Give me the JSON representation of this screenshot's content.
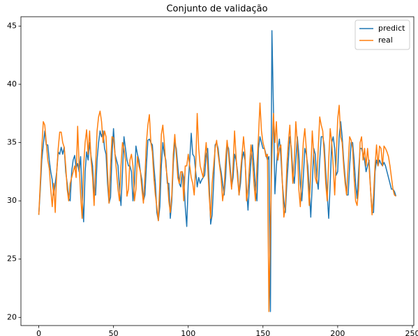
{
  "chart_data": {
    "type": "line",
    "title": "Conjunto de validação",
    "x": [
      0,
      1,
      2,
      3,
      4,
      5,
      6,
      7,
      8,
      9,
      10,
      11,
      12,
      13,
      14,
      15,
      16,
      17,
      18,
      19,
      20,
      21,
      22,
      23,
      24,
      25,
      26,
      27,
      28,
      29,
      30,
      31,
      32,
      33,
      34,
      35,
      36,
      37,
      38,
      39,
      40,
      41,
      42,
      43,
      44,
      45,
      46,
      47,
      48,
      49,
      50,
      51,
      52,
      53,
      54,
      55,
      56,
      57,
      58,
      59,
      60,
      61,
      62,
      63,
      64,
      65,
      66,
      67,
      68,
      69,
      70,
      71,
      72,
      73,
      74,
      75,
      76,
      77,
      78,
      79,
      80,
      81,
      82,
      83,
      84,
      85,
      86,
      87,
      88,
      89,
      90,
      91,
      92,
      93,
      94,
      95,
      96,
      97,
      98,
      99,
      100,
      101,
      102,
      103,
      104,
      105,
      106,
      107,
      108,
      109,
      110,
      111,
      112,
      113,
      114,
      115,
      116,
      117,
      118,
      119,
      120,
      121,
      122,
      123,
      124,
      125,
      126,
      127,
      128,
      129,
      130,
      131,
      132,
      133,
      134,
      135,
      136,
      137,
      138,
      139,
      140,
      141,
      142,
      143,
      144,
      145,
      146,
      147,
      148,
      149,
      150,
      151,
      152,
      153,
      154,
      155,
      156,
      157,
      158,
      159,
      160,
      161,
      162,
      163,
      164,
      165,
      166,
      167,
      168,
      169,
      170,
      171,
      172,
      173,
      174,
      175,
      176,
      177,
      178,
      179,
      180,
      181,
      182,
      183,
      184,
      185,
      186,
      187,
      188,
      189,
      190,
      191,
      192,
      193,
      194,
      195,
      196,
      197,
      198,
      199,
      200,
      201,
      202,
      203,
      204,
      205,
      206,
      207,
      208,
      209,
      210,
      211,
      212,
      213,
      214,
      215,
      216,
      217,
      218,
      219,
      220,
      221,
      222,
      223,
      224,
      225,
      226,
      227,
      228,
      229,
      230,
      231,
      232,
      233,
      234,
      235,
      236,
      237,
      238,
      239
    ],
    "series": [
      {
        "name": "predict",
        "color": "#1f77b4",
        "values": [
          28.8,
          31.0,
          33.5,
          34.8,
          36.0,
          34.8,
          34.8,
          33.5,
          32.5,
          31.8,
          30.5,
          31.5,
          32.5,
          34.2,
          34.0,
          34.6,
          34.0,
          34.6,
          32.5,
          31.5,
          30.2,
          30.0,
          32.5,
          33.5,
          33.9,
          32.8,
          33.2,
          32.5,
          33.8,
          30.5,
          28.2,
          32.5,
          34.2,
          33.5,
          35.0,
          33.8,
          33.0,
          30.5,
          30.5,
          33.5,
          35.0,
          36.0,
          35.5,
          36.0,
          34.5,
          34.0,
          31.5,
          29.8,
          30.3,
          34.0,
          36.2,
          34.0,
          33.5,
          33.0,
          31.0,
          29.6,
          32.5,
          35.5,
          34.5,
          33.5,
          33.0,
          33.0,
          32.5,
          30.0,
          31.5,
          34.7,
          34.0,
          33.5,
          32.5,
          31.8,
          30.0,
          30.5,
          33.0,
          35.2,
          35.3,
          35.0,
          34.8,
          33.0,
          31.5,
          29.0,
          28.3,
          29.5,
          33.0,
          35.0,
          34.0,
          33.5,
          31.5,
          31.5,
          28.5,
          30.0,
          33.2,
          35.0,
          34.5,
          33.0,
          31.5,
          31.2,
          32.5,
          32.0,
          29.5,
          27.8,
          31.5,
          33.5,
          35.8,
          34.0,
          33.8,
          32.5,
          31.2,
          32.0,
          31.5,
          31.8,
          32.0,
          32.2,
          34.0,
          34.5,
          31.5,
          28.0,
          28.8,
          31.5,
          34.8,
          35.0,
          34.5,
          33.2,
          32.5,
          31.5,
          30.5,
          32.0,
          34.8,
          34.5,
          33.0,
          31.2,
          32.0,
          34.0,
          33.5,
          32.5,
          30.5,
          31.5,
          33.5,
          34.2,
          33.5,
          31.0,
          29.2,
          31.5,
          33.5,
          34.8,
          33.0,
          31.0,
          30.0,
          34.5,
          35.5,
          35.0,
          34.5,
          34.5,
          34.0,
          33.5,
          33.8,
          20.5,
          44.6,
          38.0,
          30.6,
          33.0,
          34.5,
          35.3,
          33.8,
          31.5,
          30.0,
          29.0,
          31.5,
          33.5,
          35.5,
          34.5,
          32.5,
          31.5,
          33.5,
          35.5,
          34.0,
          31.5,
          30.0,
          32.0,
          34.5,
          34.0,
          33.0,
          31.0,
          28.6,
          31.5,
          34.5,
          34.0,
          32.0,
          31.0,
          33.5,
          35.5,
          35.5,
          34.8,
          32.5,
          30.5,
          28.5,
          31.5,
          35.0,
          35.5,
          34.5,
          32.2,
          32.5,
          35.5,
          36.8,
          35.5,
          33.5,
          32.0,
          30.5,
          30.5,
          33.0,
          35.0,
          35.0,
          33.5,
          31.5,
          30.2,
          32.5,
          34.5,
          34.5,
          34.0,
          33.5,
          32.5,
          33.0,
          33.5,
          31.0,
          29.0,
          29.0,
          32.5,
          33.5,
          33.0,
          33.5,
          33.2,
          33.0,
          33.3,
          33.0,
          32.5,
          32.0,
          31.5,
          31.0,
          31.0,
          30.8,
          30.4
        ]
      },
      {
        "name": "real",
        "color": "#ff7f0e",
        "values": [
          28.8,
          31.5,
          34.5,
          36.8,
          36.5,
          35.0,
          33.5,
          32.8,
          31.0,
          29.5,
          31.5,
          29.0,
          32.5,
          34.5,
          35.9,
          35.9,
          35.0,
          34.6,
          33.0,
          31.0,
          30.0,
          31.5,
          32.0,
          32.5,
          33.0,
          32.0,
          36.4,
          33.0,
          30.5,
          28.5,
          33.0,
          35.0,
          36.1,
          34.0,
          36.0,
          33.5,
          32.0,
          29.6,
          33.0,
          36.0,
          37.2,
          37.7,
          36.8,
          35.0,
          36.0,
          35.5,
          32.5,
          29.8,
          33.0,
          35.5,
          35.4,
          34.0,
          32.5,
          31.0,
          30.0,
          33.0,
          35.0,
          34.5,
          33.5,
          30.4,
          31.0,
          33.5,
          34.0,
          33.0,
          30.0,
          31.0,
          33.8,
          33.0,
          32.5,
          31.0,
          29.8,
          32.0,
          35.0,
          36.5,
          37.4,
          35.0,
          34.2,
          32.0,
          30.5,
          29.5,
          28.3,
          31.5,
          35.7,
          36.5,
          35.0,
          33.0,
          32.0,
          30.0,
          29.0,
          30.5,
          34.0,
          35.7,
          34.0,
          32.0,
          31.5,
          32.5,
          32.5,
          30.0,
          33.0,
          33.0,
          34.0,
          33.0,
          32.0,
          31.5,
          30.5,
          33.0,
          37.5,
          34.5,
          33.0,
          32.5,
          32.0,
          33.5,
          35.0,
          33.0,
          30.5,
          28.5,
          31.5,
          33.0,
          34.5,
          35.2,
          34.0,
          33.0,
          32.0,
          30.0,
          31.0,
          33.5,
          35.2,
          34.0,
          32.5,
          31.0,
          33.0,
          36.0,
          33.8,
          32.0,
          30.5,
          32.5,
          34.0,
          35.5,
          34.0,
          30.0,
          31.0,
          33.0,
          34.8,
          33.5,
          31.5,
          30.0,
          33.0,
          35.5,
          38.4,
          36.0,
          35.0,
          34.5,
          33.8,
          34.0,
          20.5,
          28.0,
          34.0,
          37.5,
          35.0,
          36.8,
          33.5,
          34.5,
          34.8,
          31.5,
          28.6,
          29.5,
          33.0,
          35.0,
          36.5,
          34.0,
          31.5,
          33.5,
          36.8,
          35.0,
          31.0,
          29.5,
          32.5,
          35.0,
          36.2,
          34.5,
          32.0,
          29.6,
          32.5,
          36.0,
          34.0,
          32.0,
          31.5,
          34.5,
          37.2,
          36.5,
          36.0,
          34.0,
          31.5,
          30.0,
          33.5,
          36.2,
          35.0,
          33.0,
          30.5,
          33.5,
          37.0,
          38.2,
          35.5,
          35.0,
          33.0,
          31.5,
          30.5,
          33.0,
          35.5,
          35.2,
          34.5,
          32.0,
          30.0,
          29.6,
          31.0,
          35.0,
          35.5,
          33.5,
          34.5,
          33.0,
          34.5,
          33.0,
          31.0,
          28.8,
          30.5,
          33.0,
          34.8,
          33.0,
          34.7,
          34.5,
          33.0,
          34.7,
          34.5,
          34.2,
          33.8,
          33.0,
          32.0,
          31.0,
          30.5,
          30.4
        ]
      }
    ],
    "xlim": [
      -11.95,
      250.95
    ],
    "xticks": [
      0,
      50,
      100,
      150,
      200,
      250
    ],
    "ylim": [
      19.3,
      45.8
    ],
    "yticks": [
      20,
      25,
      30,
      35,
      40,
      45
    ],
    "legend": "upper right"
  }
}
